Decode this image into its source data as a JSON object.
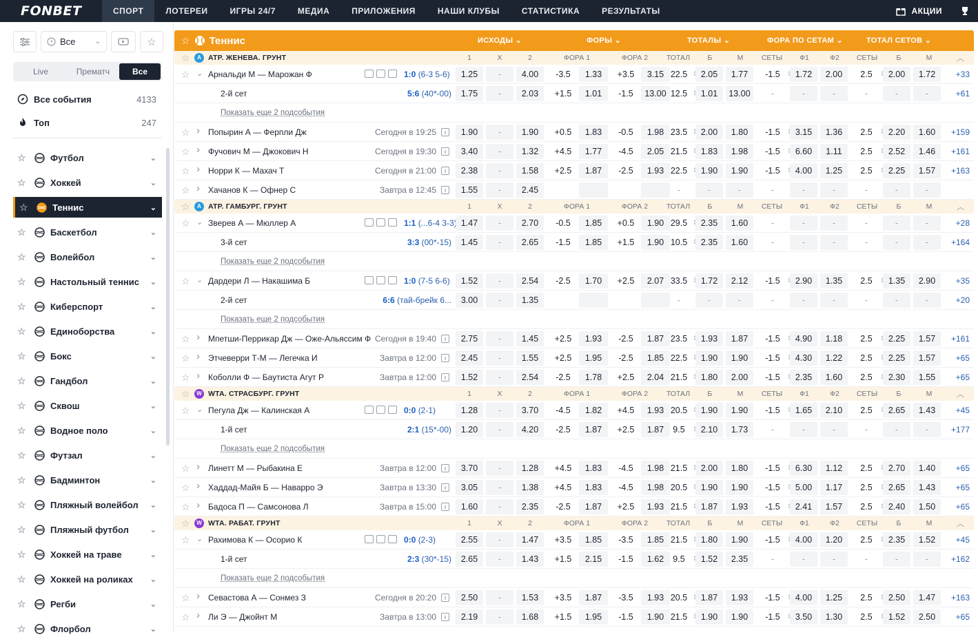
{
  "nav": {
    "logo": "FONBET",
    "tabs": [
      "СПОРТ",
      "ЛОТЕРЕИ",
      "ИГРЫ 24/7",
      "МЕДИА",
      "ПРИЛОЖЕНИЯ",
      "НАШИ КЛУБЫ",
      "СТАТИСТИКА",
      "РЕЗУЛЬТАТЫ"
    ],
    "promo": "АКЦИИ"
  },
  "sidebar": {
    "filter_value": "Все",
    "segments": [
      "Live",
      "Прематч",
      "Все"
    ],
    "all_events": {
      "label": "Все события",
      "count": "4133"
    },
    "top": {
      "label": "Топ",
      "count": "247"
    },
    "sports": [
      "Футбол",
      "Хоккей",
      "Теннис",
      "Баскетбол",
      "Волейбол",
      "Настольный теннис",
      "Киберспорт",
      "Единоборства",
      "Бокс",
      "Гандбол",
      "Сквош",
      "Водное поло",
      "Футзал",
      "Бадминтон",
      "Пляжный волейбол",
      "Пляжный футбол",
      "Хоккей на траве",
      "Хоккей на роликах",
      "Регби",
      "Флорбол"
    ],
    "active_sport": "Теннис"
  },
  "main": {
    "sport_title": "Теннис",
    "market_groups": [
      "ИСХОДЫ",
      "ФОРЫ",
      "ТОТАЛЫ",
      "ФОРА ПО СЕТАМ",
      "ТОТАЛ СЕТОВ"
    ],
    "col_headers": [
      "1",
      "X",
      "2",
      "ФОРА 1",
      "ФОРА 2",
      "ТОТАЛ",
      "Б",
      "М",
      "СЕТЫ",
      "Ф1",
      "Ф2",
      "СЕТЫ",
      "Б",
      "М"
    ],
    "show_more": "Показать еще 2 подсобытия",
    "leagues": [
      {
        "name": "ATP. ЖЕНЕВА. ГРУНТ",
        "kind": "atp",
        "rows": [
          {
            "type": "event",
            "name": "Арнальди М — Марожан Ф",
            "live": true,
            "score": "1:0",
            "detail": "(6-3 5-6)",
            "o": [
              "1.25",
              "-",
              "4.00",
              "-3.5",
              "1.33",
              "+3.5",
              "3.15",
              "22.5",
              "2.05",
              "1.77",
              "-1.5",
              "1.72",
              "2.00",
              "2.5",
              "2.00",
              "1.72"
            ],
            "more": "+33"
          },
          {
            "type": "sub",
            "name": "2-й сет",
            "score": "5:6",
            "detail": "(40*-00)",
            "o": [
              "1.75",
              "-",
              "2.03",
              "+1.5",
              "1.01",
              "-1.5",
              "13.00",
              "12.5",
              "1.01",
              "13.00",
              "-",
              "-",
              "-",
              "-",
              "-",
              "-"
            ],
            "more": "+61"
          },
          {
            "type": "showmore"
          },
          {
            "type": "event",
            "name": "Попырин А — Ферпли Дж",
            "time": "Сегодня в 19:25",
            "o": [
              "1.90",
              "-",
              "1.90",
              "+0.5",
              "1.83",
              "-0.5",
              "1.98",
              "23.5",
              "2.00",
              "1.80",
              "-1.5",
              "3.15",
              "1.36",
              "2.5",
              "2.20",
              "1.60"
            ],
            "more": "+159"
          },
          {
            "type": "event",
            "name": "Фучович М — Джокович Н",
            "time": "Сегодня в 19:30",
            "o": [
              "3.40",
              "-",
              "1.32",
              "+4.5",
              "1.77",
              "-4.5",
              "2.05",
              "21.5",
              "1.83",
              "1.98",
              "-1.5",
              "6.60",
              "1.11",
              "2.5",
              "2.52",
              "1.46"
            ],
            "more": "+161"
          },
          {
            "type": "event",
            "name": "Норри К — Махач Т",
            "time": "Сегодня в 21:00",
            "o": [
              "2.38",
              "-",
              "1.58",
              "+2.5",
              "1.87",
              "-2.5",
              "1.93",
              "22.5",
              "1.90",
              "1.90",
              "-1.5",
              "4.00",
              "1.25",
              "2.5",
              "2.25",
              "1.57"
            ],
            "more": "+163"
          },
          {
            "type": "event",
            "name": "Хачанов К — Офнер С",
            "time": "Завтра в 12:45",
            "o": [
              "1.55",
              "-",
              "2.45",
              "",
              "",
              "",
              "",
              "-",
              "-",
              "-",
              "-",
              "-",
              "-",
              "-",
              "-",
              "-"
            ],
            "more": ""
          }
        ]
      },
      {
        "name": "ATP. ГАМБУРГ. ГРУНТ",
        "kind": "atp",
        "rows": [
          {
            "type": "event",
            "name": "Зверев А — Мюллер А",
            "live": true,
            "score": "1:1",
            "detail": "(...6-4 3-3)",
            "o": [
              "1.47",
              "-",
              "2.70",
              "-0.5",
              "1.85",
              "+0.5",
              "1.90",
              "29.5",
              "2.35",
              "1.60",
              "-",
              "-",
              "-",
              "-",
              "-",
              "-"
            ],
            "more": "+28"
          },
          {
            "type": "sub",
            "name": "3-й сет",
            "score": "3:3",
            "detail": "(00*-15)",
            "o": [
              "1.45",
              "-",
              "2.65",
              "-1.5",
              "1.85",
              "+1.5",
              "1.90",
              "10.5",
              "2.35",
              "1.60",
              "-",
              "-",
              "-",
              "-",
              "-",
              "-"
            ],
            "more": "+164"
          },
          {
            "type": "showmore"
          },
          {
            "type": "event",
            "name": "Дардери Л — Накашима Б",
            "live": true,
            "score": "1:0",
            "detail": "(7-5 6-6)",
            "o": [
              "1.52",
              "-",
              "2.54",
              "-2.5",
              "1.70",
              "+2.5",
              "2.07",
              "33.5",
              "1.72",
              "2.12",
              "-1.5",
              "2.90",
              "1.35",
              "2.5",
              "1.35",
              "2.90"
            ],
            "more": "+35"
          },
          {
            "type": "sub",
            "name": "2-й сет",
            "score": "6:6",
            "detail": "(тай-брейк 6...",
            "o": [
              "3.00",
              "-",
              "1.35",
              "",
              "",
              "",
              "",
              "-",
              "-",
              "-",
              "-",
              "-",
              "-",
              "-",
              "-",
              "-"
            ],
            "more": "+20"
          },
          {
            "type": "showmore"
          },
          {
            "type": "event",
            "name": "Мпетши-Перрикар Дж — Оже-Альяссим Ф",
            "time": "Сегодня в 19:40",
            "o": [
              "2.75",
              "-",
              "1.45",
              "+2.5",
              "1.93",
              "-2.5",
              "1.87",
              "23.5",
              "1.93",
              "1.87",
              "-1.5",
              "4.90",
              "1.18",
              "2.5",
              "2.25",
              "1.57"
            ],
            "more": "+161"
          },
          {
            "type": "event",
            "name": "Этчеверри Т-М — Легечка И",
            "time": "Завтра в 12:00",
            "o": [
              "2.45",
              "-",
              "1.55",
              "+2.5",
              "1.95",
              "-2.5",
              "1.85",
              "22.5",
              "1.90",
              "1.90",
              "-1.5",
              "4.30",
              "1.22",
              "2.5",
              "2.25",
              "1.57"
            ],
            "more": "+65"
          },
          {
            "type": "event",
            "name": "Коболли Ф — Баутиста Агут Р",
            "time": "Завтра в 12:00",
            "o": [
              "1.52",
              "-",
              "2.54",
              "-2.5",
              "1.78",
              "+2.5",
              "2.04",
              "21.5",
              "1.80",
              "2.00",
              "-1.5",
              "2.35",
              "1.60",
              "2.5",
              "2.30",
              "1.55"
            ],
            "more": "+65"
          }
        ]
      },
      {
        "name": "WTA. СТРАСБУРГ. ГРУНТ",
        "kind": "wta",
        "rows": [
          {
            "type": "event",
            "name": "Пегула Дж — Калинская А",
            "live": true,
            "score": "0:0",
            "detail": "(2-1)",
            "o": [
              "1.28",
              "-",
              "3.70",
              "-4.5",
              "1.82",
              "+4.5",
              "1.93",
              "20.5",
              "1.90",
              "1.90",
              "-1.5",
              "1.65",
              "2.10",
              "2.5",
              "2.65",
              "1.43"
            ],
            "more": "+45"
          },
          {
            "type": "sub",
            "name": "1-й сет",
            "score": "2:1",
            "detail": "(15*-00)",
            "o": [
              "1.20",
              "-",
              "4.20",
              "-2.5",
              "1.87",
              "+2.5",
              "1.87",
              "9.5",
              "2.10",
              "1.73",
              "-",
              "-",
              "-",
              "-",
              "-",
              "-"
            ],
            "more": "+177"
          },
          {
            "type": "showmore"
          },
          {
            "type": "event",
            "name": "Линетт М — Рыбакина Е",
            "time": "Завтра в 12:00",
            "o": [
              "3.70",
              "-",
              "1.28",
              "+4.5",
              "1.83",
              "-4.5",
              "1.98",
              "21.5",
              "2.00",
              "1.80",
              "-1.5",
              "6.30",
              "1.12",
              "2.5",
              "2.70",
              "1.40"
            ],
            "more": "+65"
          },
          {
            "type": "event",
            "name": "Хаддад-Майя Б — Наварро Э",
            "time": "Завтра в 13:30",
            "o": [
              "3.05",
              "-",
              "1.38",
              "+4.5",
              "1.83",
              "-4.5",
              "1.98",
              "20.5",
              "1.90",
              "1.90",
              "-1.5",
              "5.00",
              "1.17",
              "2.5",
              "2.65",
              "1.43"
            ],
            "more": "+65"
          },
          {
            "type": "event",
            "name": "Бадоса П — Самсонова Л",
            "time": "Завтра в 15:00",
            "o": [
              "1.60",
              "-",
              "2.35",
              "-2.5",
              "1.87",
              "+2.5",
              "1.93",
              "21.5",
              "1.87",
              "1.93",
              "-1.5",
              "2.41",
              "1.57",
              "2.5",
              "2.40",
              "1.50"
            ],
            "more": "+65"
          }
        ]
      },
      {
        "name": "WTA. РАБАТ. ГРУНТ",
        "kind": "wta",
        "rows": [
          {
            "type": "event",
            "name": "Рахимова К — Осорио К",
            "live": true,
            "score": "0:0",
            "detail": "(2-3)",
            "o": [
              "2.55",
              "-",
              "1.47",
              "+3.5",
              "1.85",
              "-3.5",
              "1.85",
              "21.5",
              "1.80",
              "1.90",
              "-1.5",
              "4.00",
              "1.20",
              "2.5",
              "2.35",
              "1.52"
            ],
            "more": "+45"
          },
          {
            "type": "sub",
            "name": "1-й сет",
            "score": "2:3",
            "detail": "(30*-15)",
            "o": [
              "2.65",
              "-",
              "1.43",
              "+1.5",
              "2.15",
              "-1.5",
              "1.62",
              "9.5",
              "1.52",
              "2.35",
              "-",
              "-",
              "-",
              "-",
              "-",
              "-"
            ],
            "more": "+162"
          },
          {
            "type": "showmore"
          },
          {
            "type": "event",
            "name": "Севастова А — Сонмез З",
            "time": "Сегодня в 20:20",
            "o": [
              "2.50",
              "-",
              "1.53",
              "+3.5",
              "1.87",
              "-3.5",
              "1.93",
              "20.5",
              "1.87",
              "1.93",
              "-1.5",
              "4.00",
              "1.25",
              "2.5",
              "2.50",
              "1.47"
            ],
            "more": "+163"
          },
          {
            "type": "event",
            "name": "Ли Э — Джойнт М",
            "time": "Завтра в 13:00",
            "o": [
              "2.19",
              "-",
              "1.68",
              "+1.5",
              "1.95",
              "-1.5",
              "1.90",
              "21.5",
              "1.90",
              "1.90",
              "-1.5",
              "3.50",
              "1.30",
              "2.5",
              "1.52",
              "2.50"
            ],
            "more": "+65"
          }
        ]
      }
    ]
  },
  "colors": {
    "accent": "#f29a1a",
    "nav_bg": "#1c2431",
    "league_bg": "#fdf3e3",
    "live_blue": "#1b5fc6",
    "atp": "#2a9be0",
    "wta": "#8a3bd6"
  }
}
